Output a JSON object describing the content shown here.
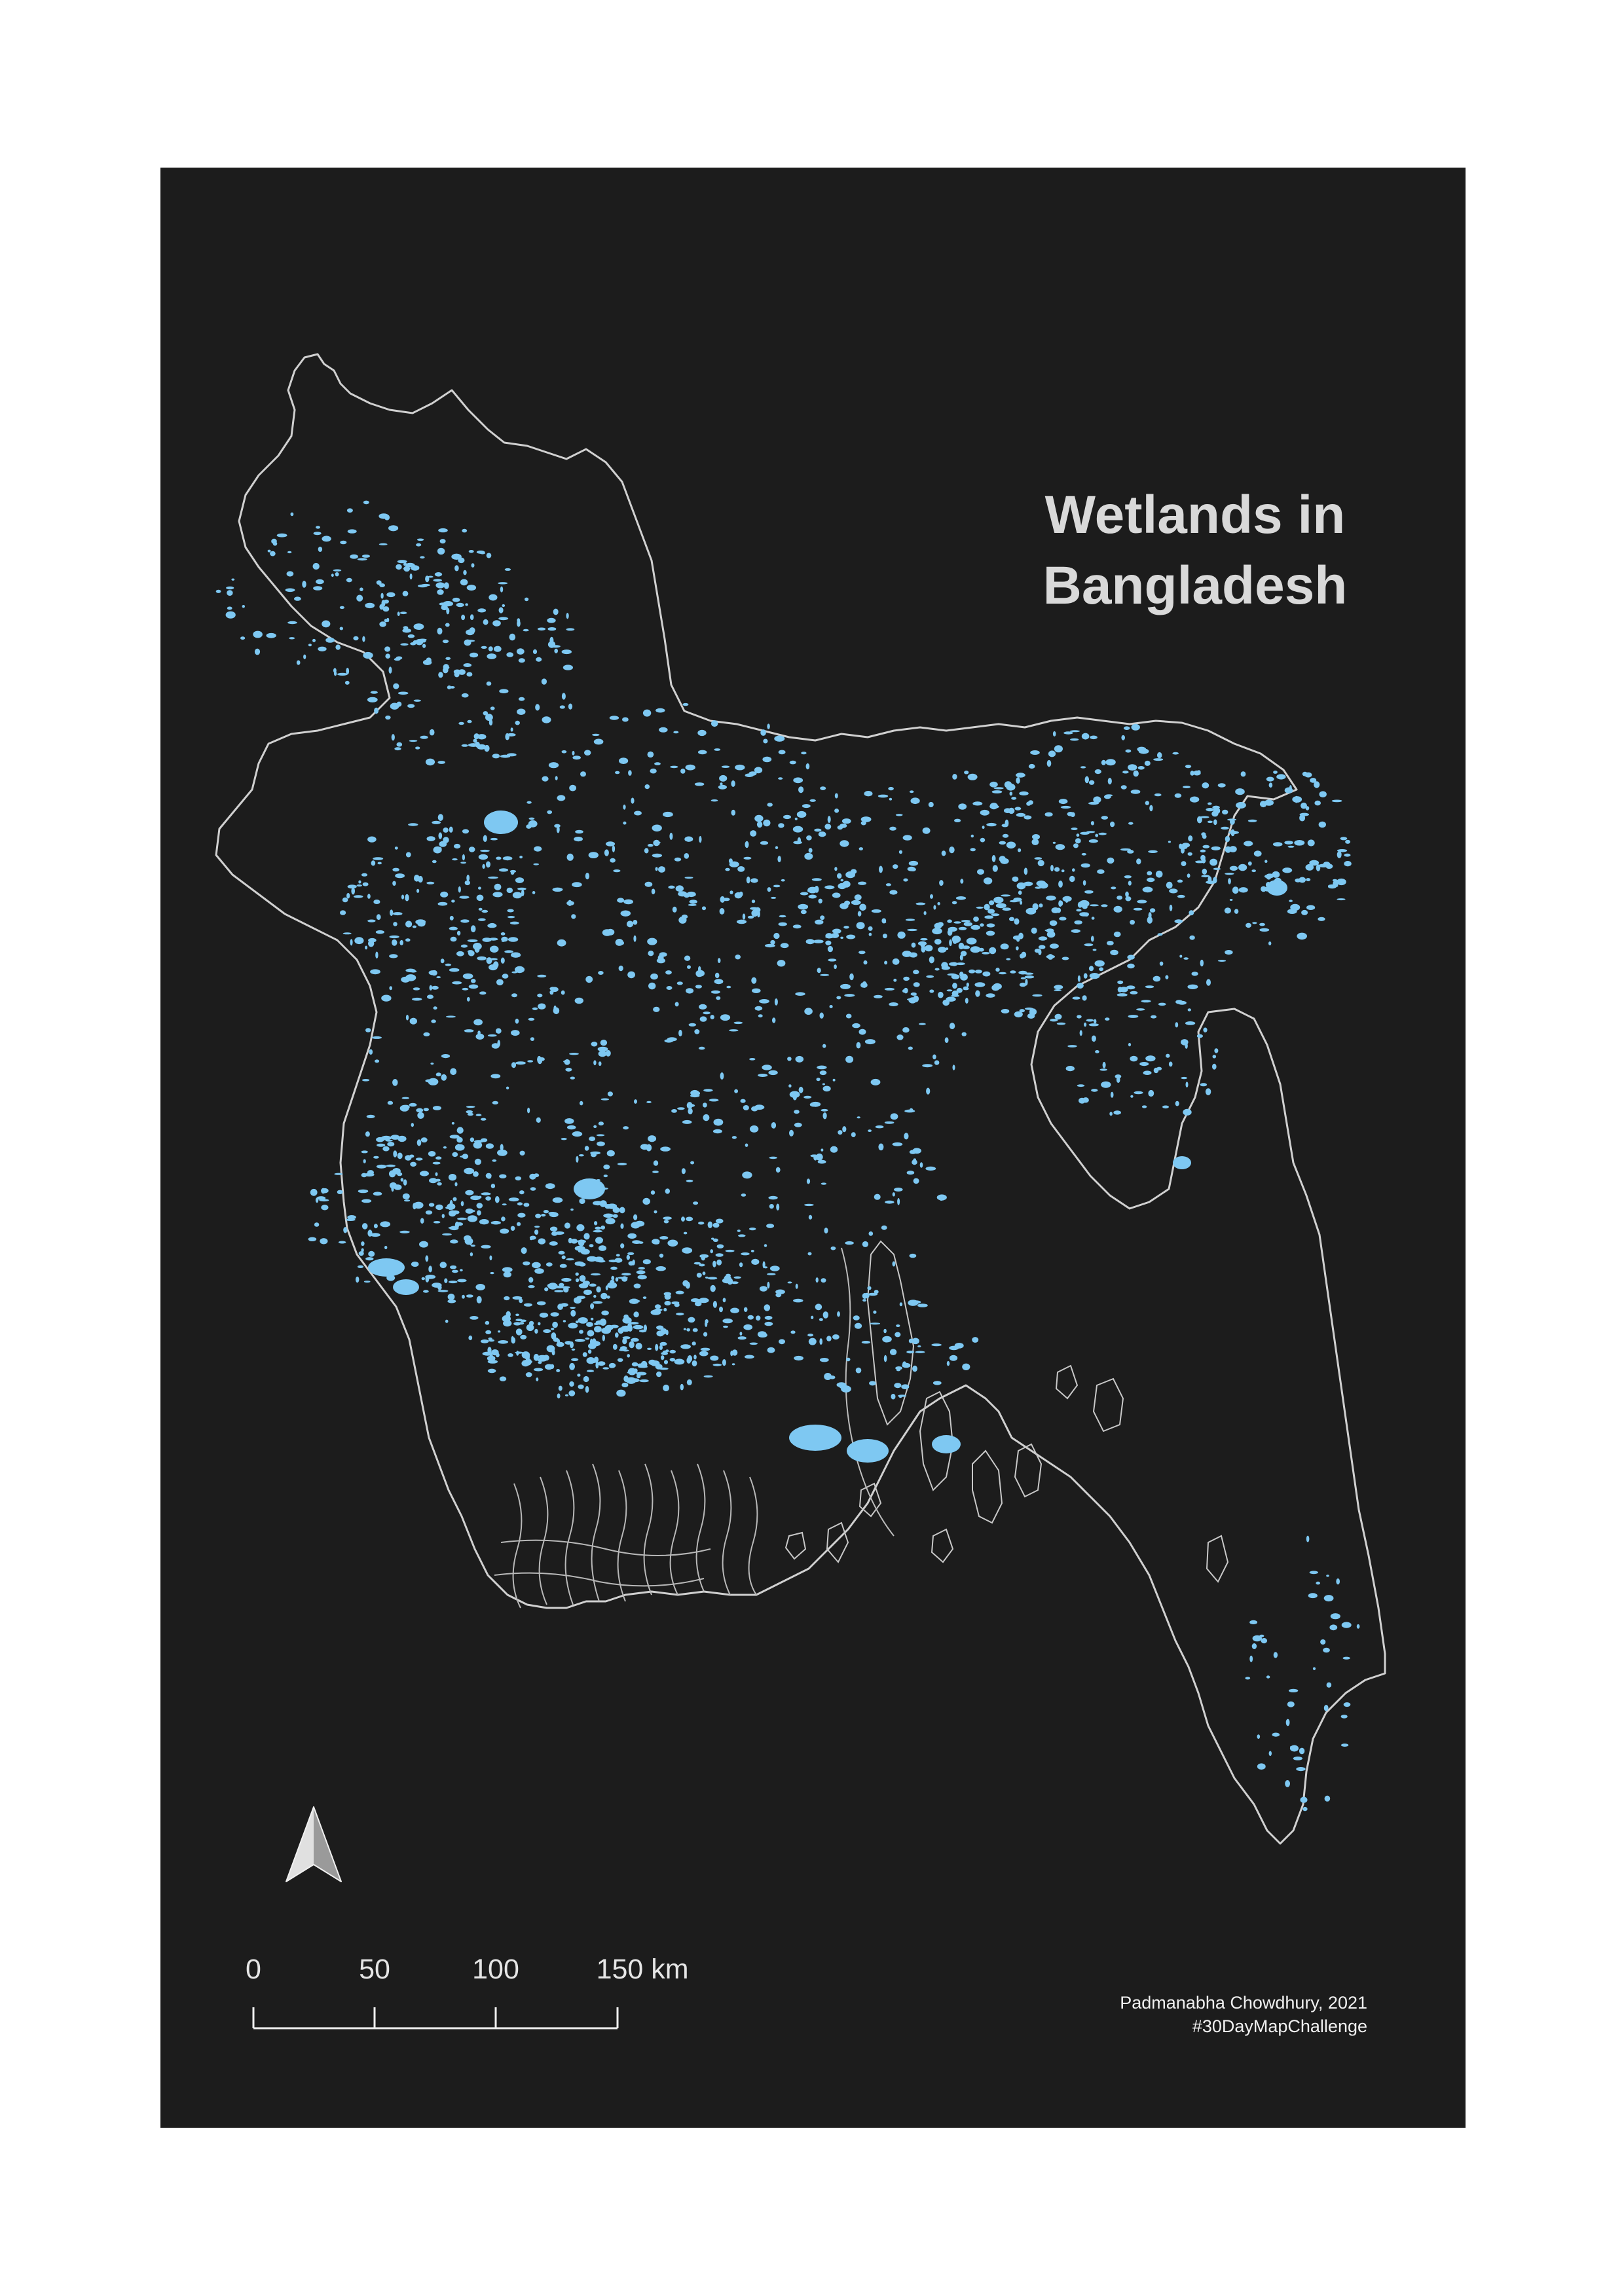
{
  "title": {
    "line1": "Wetlands in",
    "line2": "Bangladesh"
  },
  "scale_bar": {
    "labels": [
      "0",
      "50",
      "100",
      "150 km"
    ]
  },
  "credit": {
    "author": "Padmanabha Chowdhury, 2021",
    "hashtag": "#30DayMapChallenge"
  },
  "colors": {
    "background": "#1c1c1c",
    "page": "#ffffff",
    "boundary": "#d0d0d0",
    "wetland": "#7ec8f2",
    "text": "#d9d9d9"
  },
  "icons": {
    "north_arrow": "north-arrow-icon"
  }
}
